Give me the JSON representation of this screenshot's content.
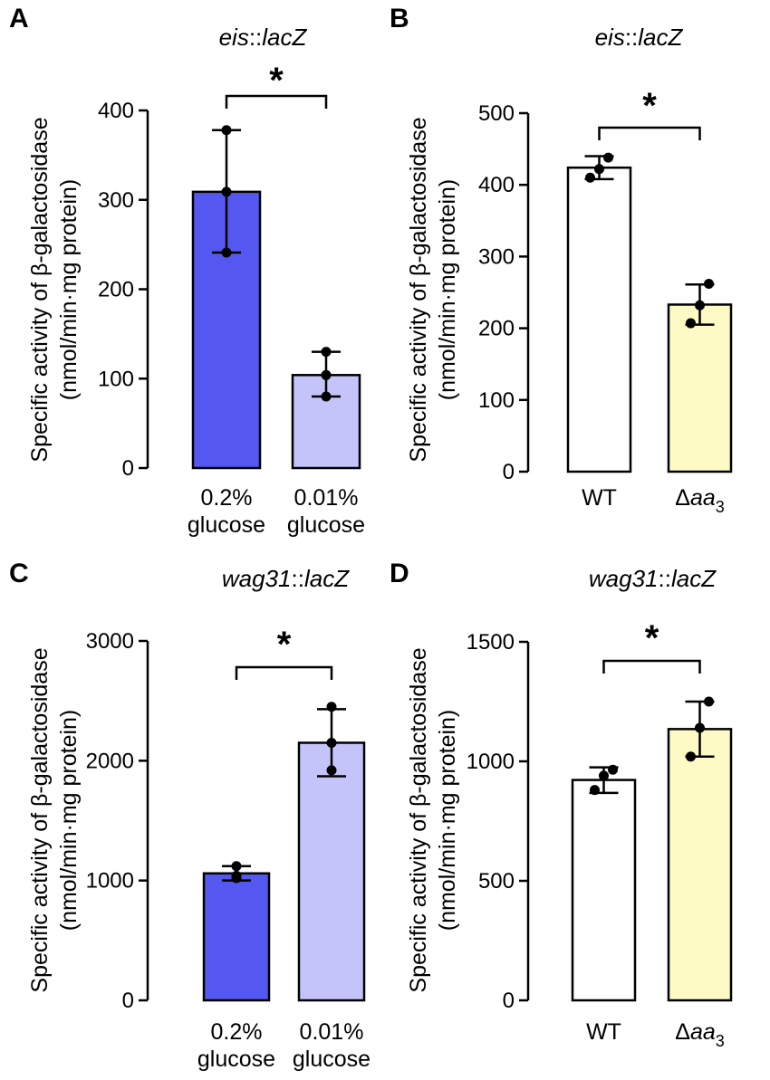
{
  "figure": {
    "ylabel_line1": "Specific activity of β-galactosidase",
    "ylabel_line2": "(nmol/min·mg protein)"
  },
  "chart_data": [
    {
      "panel": "A",
      "type": "bar",
      "title_italic": "eis",
      "title_rest": "::",
      "title_italic2": "lacZ",
      "categories": [
        [
          "0.2%",
          "glucose"
        ],
        [
          "0.01%",
          "glucose"
        ]
      ],
      "values": [
        309,
        104
      ],
      "error": [
        [
          241,
          378
        ],
        [
          80,
          130
        ]
      ],
      "points": [
        [
          241,
          309,
          378
        ],
        [
          80,
          104,
          130
        ]
      ],
      "colors": [
        "#5458f0",
        "#c4c4fb"
      ],
      "ylim": [
        0,
        400
      ],
      "yticks": [
        "0",
        "100",
        "200",
        "300",
        "400"
      ],
      "significance": "*"
    },
    {
      "panel": "B",
      "type": "bar",
      "title_italic": "eis",
      "title_rest": "::",
      "title_italic2": "lacZ",
      "categories": [
        [
          "WT"
        ],
        [
          "Δaa3"
        ]
      ],
      "values": [
        424,
        233
      ],
      "error": [
        [
          408,
          440
        ],
        [
          205,
          261
        ]
      ],
      "points": [
        [
          410,
          422,
          438
        ],
        [
          207,
          232,
          262
        ]
      ],
      "colors": [
        "#ffffff",
        "#fdfac5"
      ],
      "ylim": [
        0,
        500
      ],
      "yticks": [
        "0",
        "100",
        "200",
        "300",
        "400",
        "500"
      ],
      "significance": "*"
    },
    {
      "panel": "C",
      "type": "bar",
      "title_italic": "wag31",
      "title_rest": "::",
      "title_italic2": "lacZ",
      "categories": [
        [
          "0.2%",
          "glucose"
        ],
        [
          "0.01%",
          "glucose"
        ]
      ],
      "values": [
        1060,
        2150
      ],
      "error": [
        [
          1000,
          1120
        ],
        [
          1870,
          2430
        ]
      ],
      "points": [
        [
          1020,
          1040,
          1120
        ],
        [
          1920,
          2150,
          2450
        ]
      ],
      "colors": [
        "#5458f0",
        "#c4c4fb"
      ],
      "ylim": [
        0,
        3000
      ],
      "yticks": [
        "0",
        "1000",
        "2000",
        "3000"
      ],
      "significance": "*"
    },
    {
      "panel": "D",
      "type": "bar",
      "title_italic": "wag31",
      "title_rest": "::",
      "title_italic2": "lacZ",
      "categories": [
        [
          "WT"
        ],
        [
          "Δaa3"
        ]
      ],
      "values": [
        922,
        1135
      ],
      "error": [
        [
          868,
          975
        ],
        [
          1020,
          1250
        ]
      ],
      "points": [
        [
          880,
          940,
          965
        ],
        [
          1020,
          1140,
          1250
        ]
      ],
      "colors": [
        "#ffffff",
        "#fdfac5"
      ],
      "ylim": [
        0,
        1500
      ],
      "yticks": [
        "0",
        "500",
        "1000",
        "1500"
      ],
      "significance": "*"
    }
  ]
}
